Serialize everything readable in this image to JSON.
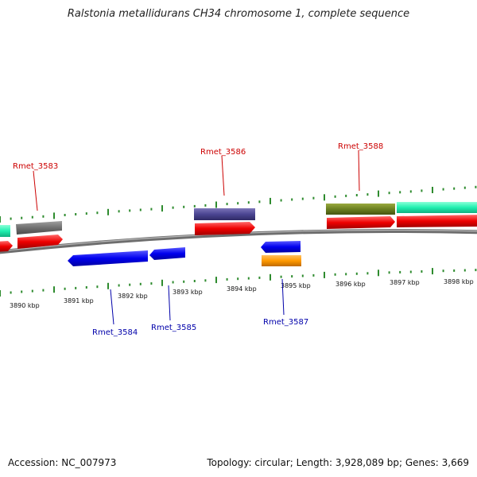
{
  "title": "Ralstonia metallidurans CH34 chromosome 1, complete sequence",
  "footer": {
    "accession": "Accession: NC_007973",
    "summary": "Topology: circular; Length: 3,928,089 bp; Genes: 3,669"
  },
  "colors": {
    "backbone": "#7a7a7a",
    "tick": "#2e8b2e",
    "label_forward": "#cc0000",
    "label_reverse": "#0000aa"
  },
  "scale_labels": [
    "3890 kbp",
    "3891 kbp",
    "3892 kbp",
    "3893 kbp",
    "3894 kbp",
    "3895 kbp",
    "3896 kbp",
    "3897 kbp",
    "3898 kbp"
  ],
  "gene_labels_forward": [
    "Rmet_3583",
    "Rmet_3586",
    "Rmet_3588"
  ],
  "gene_labels_reverse": [
    "Rmet_3584",
    "Rmet_3585",
    "Rmet_3587"
  ]
}
